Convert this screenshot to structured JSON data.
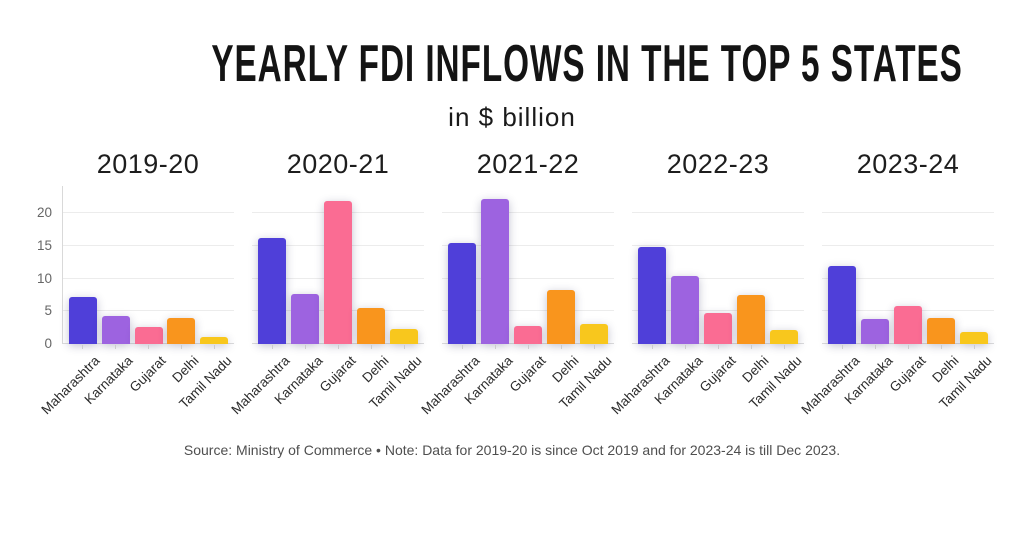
{
  "header": {
    "title": "YEARLY FDI INFLOWS IN THE TOP 5 STATES",
    "subtitle": "in $ billion"
  },
  "footer": {
    "text": "Source: Ministry of Commerce • Note: Data for 2019-20 is since Oct 2019 and for 2023-24 is till Dec 2023."
  },
  "chart_data": {
    "type": "bar",
    "layout": "small-multiples",
    "title": "YEARLY FDI INFLOWS IN THE TOP 5 STATES",
    "subtitle": "in $ billion",
    "categories": [
      "Maharashtra",
      "Karnataka",
      "Gujarat",
      "Delhi",
      "Tamil Nadu"
    ],
    "colors": [
      "#4F3FD9",
      "#9D63E0",
      "#FA6C93",
      "#F9951D",
      "#F8C71D"
    ],
    "yticks": [
      0,
      5,
      10,
      15,
      20
    ],
    "ylim": [
      0,
      24
    ],
    "grid": true,
    "legend": "none",
    "panels": [
      {
        "title": "2019-20",
        "values": [
          7.2,
          4.3,
          2.6,
          4.0,
          1.1
        ]
      },
      {
        "title": "2020-21",
        "values": [
          16.2,
          7.7,
          21.9,
          5.5,
          2.3
        ]
      },
      {
        "title": "2021-22",
        "values": [
          15.4,
          22.1,
          2.7,
          8.2,
          3.0
        ]
      },
      {
        "title": "2022-23",
        "values": [
          14.8,
          10.4,
          4.7,
          7.5,
          2.2
        ]
      },
      {
        "title": "2023-24",
        "values": [
          12.0,
          3.8,
          5.8,
          4.0,
          1.9
        ]
      }
    ]
  }
}
